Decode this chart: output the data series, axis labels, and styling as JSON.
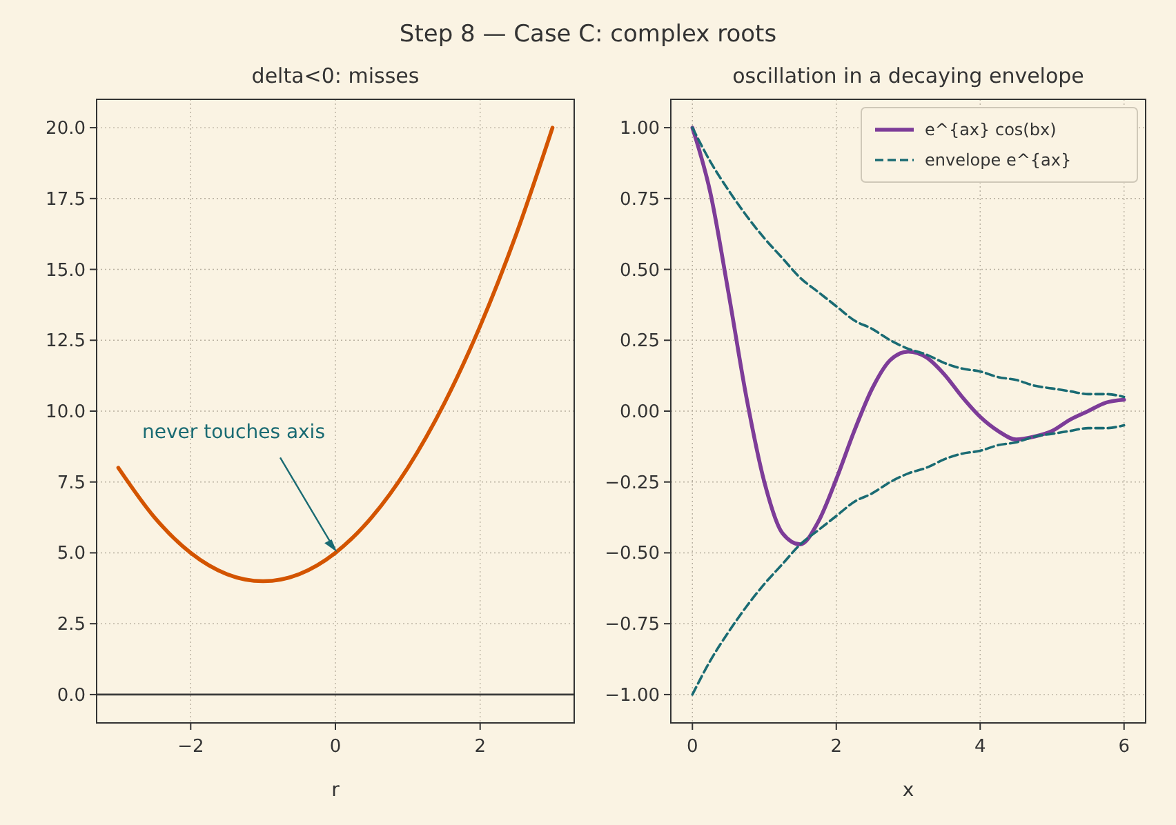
{
  "chart_data": [
    {
      "type": "line",
      "title": "delta<0: misses",
      "xlabel": "r",
      "annotations": [
        "Step 8 — Case C: complex roots",
        {
          "text": "never touches axis",
          "x": 0,
          "y": 5
        }
      ],
      "x": [
        -3,
        -2.5,
        -2,
        -1.5,
        -1,
        -0.5,
        0,
        0.5,
        1,
        1.5,
        2,
        2.5,
        3
      ],
      "series": [
        {
          "color": "#d35400",
          "values": [
            8,
            6.25,
            5,
            4.25,
            4,
            4.25,
            5,
            6.25,
            8,
            10.25,
            13,
            16.25,
            20
          ]
        }
      ],
      "xlim": [
        -3.3,
        3.3
      ],
      "xticks": [
        {
          "value": -2,
          "label": "−2"
        },
        0,
        2
      ],
      "ylim": [
        -1,
        21
      ],
      "yticks": [
        {
          "value": 0,
          "label": "0.0"
        },
        {
          "value": 2.5,
          "label": "2.5"
        },
        {
          "value": 5,
          "label": "5.0"
        },
        {
          "value": 7.5,
          "label": "7.5"
        },
        {
          "value": 10,
          "label": "10.0"
        },
        {
          "value": 12.5,
          "label": "12.5"
        },
        {
          "value": 15,
          "label": "15.0"
        },
        {
          "value": 17.5,
          "label": "17.5"
        },
        {
          "value": 20,
          "label": "20.0"
        }
      ],
      "ref_lines": [
        {
          "axis": "y",
          "value": 0,
          "color": "#3a3a3a"
        }
      ],
      "grid": true,
      "legend": false
    },
    {
      "type": "line",
      "title": "oscillation in a decaying envelope",
      "xlabel": "x",
      "x": [
        0,
        0.25,
        0.5,
        0.75,
        1,
        1.25,
        1.5,
        1.75,
        2,
        2.25,
        2.5,
        2.75,
        3,
        3.25,
        3.5,
        3.75,
        4,
        4.25,
        4.5,
        4.75,
        5,
        5.25,
        5.5,
        5.75,
        6
      ],
      "series": [
        {
          "name": "e^{ax} cos(bx)",
          "color": "#7d3c98",
          "line_style": "solid",
          "values": [
            1,
            0.77,
            0.42,
            0.05,
            -0.25,
            -0.43,
            -0.47,
            -0.39,
            -0.24,
            -0.07,
            0.08,
            0.18,
            0.21,
            0.19,
            0.13,
            0.05,
            -0.02,
            -0.07,
            -0.1,
            -0.09,
            -0.07,
            -0.03,
            0,
            0.03,
            0.04
          ]
        },
        {
          "name": "envelope e^{ax}",
          "color": "#1a6b73",
          "line_style": "dashed",
          "values": [
            1,
            0.88,
            0.78,
            0.69,
            0.61,
            0.54,
            0.47,
            0.42,
            0.37,
            0.32,
            0.29,
            0.25,
            0.22,
            0.2,
            0.17,
            0.15,
            0.14,
            0.12,
            0.11,
            0.09,
            0.08,
            0.07,
            0.06,
            0.06,
            0.05
          ]
        },
        {
          "color": "#1a6b73",
          "line_style": "dashed",
          "values": [
            -1,
            -0.88,
            -0.78,
            -0.69,
            -0.61,
            -0.54,
            -0.47,
            -0.42,
            -0.37,
            -0.32,
            -0.29,
            -0.25,
            -0.22,
            -0.2,
            -0.17,
            -0.15,
            -0.14,
            -0.12,
            -0.11,
            -0.09,
            -0.08,
            -0.07,
            -0.06,
            -0.06,
            -0.05
          ]
        }
      ],
      "xlim": [
        -0.3,
        6.3
      ],
      "xticks": [
        0,
        2,
        4,
        6
      ],
      "ylim": [
        -1.1,
        1.1
      ],
      "yticks": [
        {
          "value": -1,
          "label": "−1.00"
        },
        {
          "value": -0.75,
          "label": "−0.75"
        },
        {
          "value": -0.5,
          "label": "−0.50"
        },
        {
          "value": -0.25,
          "label": "−0.25"
        },
        {
          "value": 0,
          "label": "0.00"
        },
        {
          "value": 0.25,
          "label": "0.25"
        },
        {
          "value": 0.5,
          "label": "0.50"
        },
        {
          "value": 0.75,
          "label": "0.75"
        },
        {
          "value": 1,
          "label": "1.00"
        }
      ],
      "grid": true,
      "legend": "top right"
    }
  ]
}
